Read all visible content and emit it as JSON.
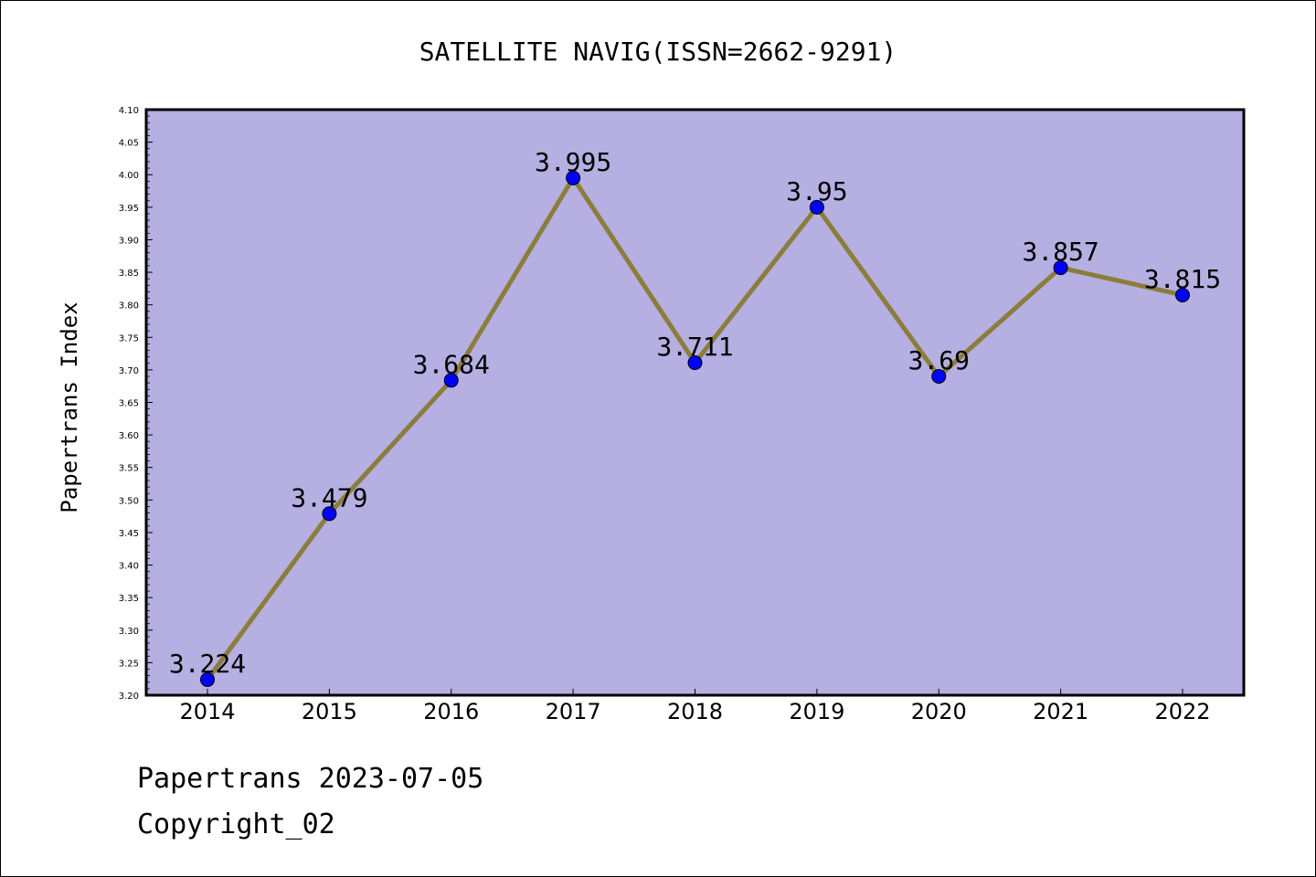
{
  "chart_data": {
    "type": "line",
    "title": "SATELLITE NAVIG(ISSN=2662-9291)",
    "xlabel": "",
    "ylabel": "Papertrans Index",
    "categories": [
      "2014",
      "2015",
      "2016",
      "2017",
      "2018",
      "2019",
      "2020",
      "2021",
      "2022"
    ],
    "series": [
      {
        "values": [
          3.224,
          3.479,
          3.684,
          3.995,
          3.711,
          3.95,
          3.69,
          3.857,
          3.815
        ],
        "point_labels": [
          "3.224",
          "3.479",
          "3.684",
          "3.995",
          "3.711",
          "3.95",
          "3.69",
          "3.857",
          "3.815"
        ]
      }
    ],
    "ylim": [
      3.2,
      4.1
    ],
    "y_ticks": [
      "3.20",
      "3.25",
      "3.30",
      "3.35",
      "3.40",
      "3.45",
      "3.50",
      "3.55",
      "3.60",
      "3.65",
      "3.70",
      "3.75",
      "3.80",
      "3.85",
      "3.90",
      "3.95",
      "4.00",
      "4.05",
      "4.10"
    ],
    "grid": false,
    "legend": "none",
    "colors": {
      "plot_background": "#b5afe2",
      "line": "#8b7d3a",
      "marker": "#0000ff"
    }
  },
  "footer": {
    "date_text": "Papertrans 2023-07-05",
    "copyright_text": "Copyright_02"
  }
}
